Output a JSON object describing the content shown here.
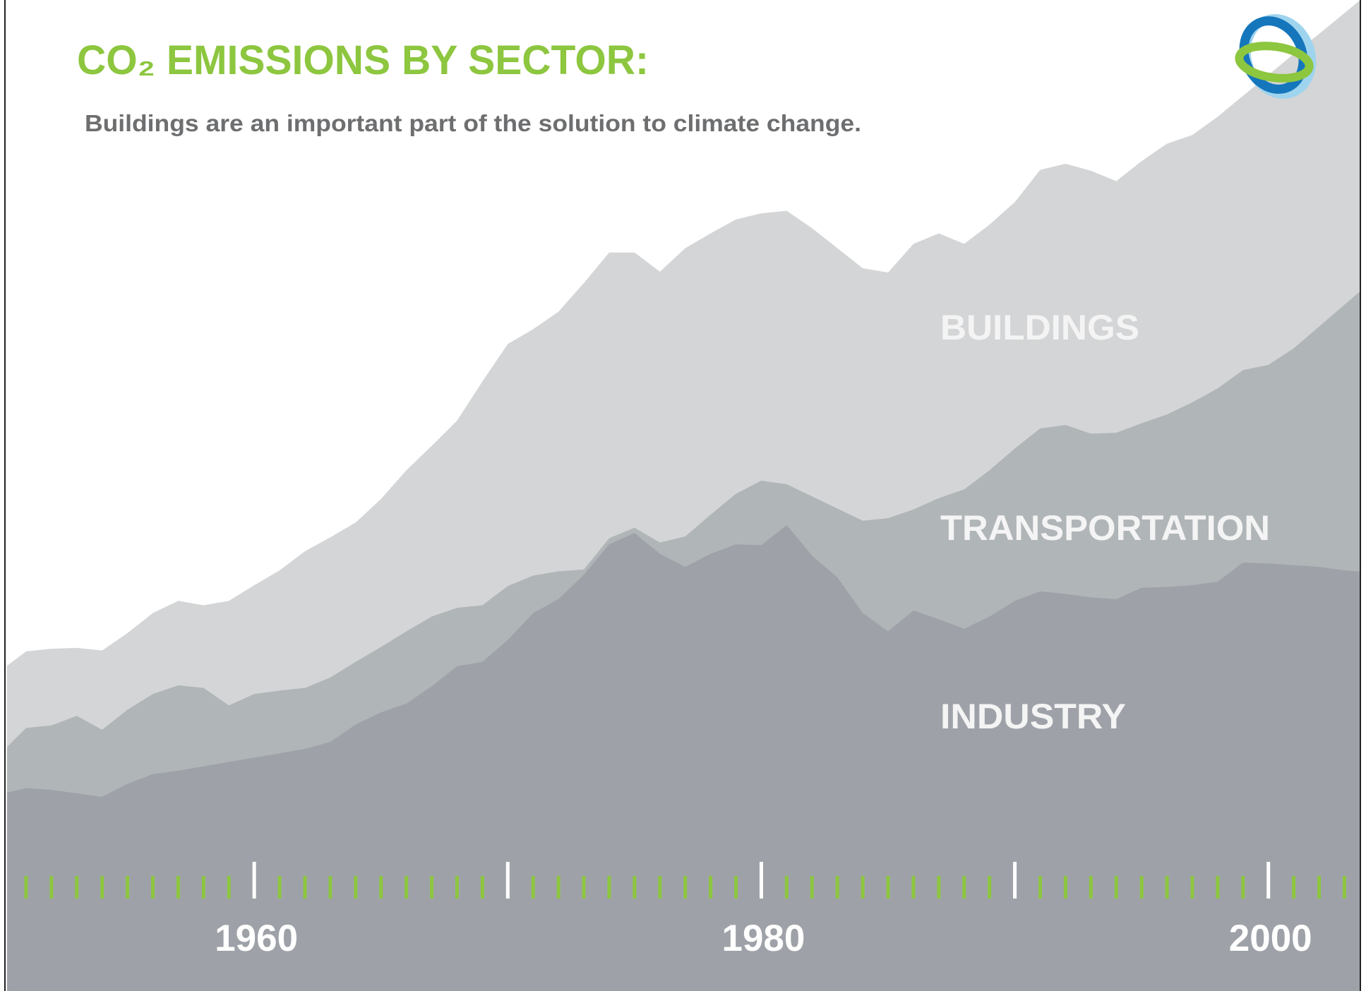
{
  "chart_data": {
    "type": "stacked_area",
    "title": "CO₂ EMISSIONS BY SECTOR:",
    "subtitle": "Buildings are an important part of the solution to climate change.",
    "x": [
      1950,
      1951,
      1952,
      1953,
      1954,
      1955,
      1956,
      1957,
      1958,
      1959,
      1960,
      1961,
      1962,
      1963,
      1964,
      1965,
      1966,
      1967,
      1968,
      1969,
      1970,
      1971,
      1972,
      1973,
      1974,
      1975,
      1976,
      1977,
      1978,
      1979,
      1980,
      1981,
      1982,
      1983,
      1984,
      1985,
      1986,
      1987,
      1988,
      1989,
      1990,
      1991,
      1992,
      1993,
      1994,
      1995,
      1996,
      1997,
      1998,
      1999,
      2000,
      2001,
      2002,
      2003,
      2004
    ],
    "series": [
      {
        "name": "INDUSTRY",
        "color": "#9ea2a8",
        "values": [
          22.6,
          23.3,
          23.1,
          22.7,
          22.3,
          23.8,
          24.9,
          25.3,
          25.8,
          26.3,
          26.8,
          27.3,
          27.8,
          28.6,
          30.6,
          32.0,
          33.0,
          35.0,
          37.3,
          37.8,
          40.3,
          43.4,
          45.0,
          47.8,
          51.3,
          52.6,
          50.2,
          48.7,
          50.2,
          51.3,
          51.2,
          53.5,
          50.0,
          47.5,
          43.4,
          41.3,
          43.7,
          42.7,
          41.6,
          43.0,
          44.8,
          45.9,
          45.6,
          45.2,
          45.0,
          46.3,
          46.4,
          46.6,
          47.0,
          49.2,
          49.1,
          48.9,
          48.7,
          48.3,
          48.1
        ]
      },
      {
        "name": "TRANSPORTATION",
        "color": "#b0b5b8",
        "values": [
          4.7,
          6.9,
          7.4,
          8.9,
          7.7,
          8.5,
          9.2,
          9.8,
          9.0,
          6.5,
          7.3,
          7.2,
          7.0,
          7.4,
          7.2,
          7.5,
          8.3,
          8.0,
          6.7,
          6.5,
          6.2,
          4.3,
          3.2,
          0.6,
          0.7,
          0.6,
          1.3,
          3.5,
          4.5,
          5.8,
          7.4,
          4.7,
          6.8,
          7.9,
          10.6,
          13.0,
          11.6,
          13.9,
          16.0,
          16.8,
          17.5,
          18.7,
          19.4,
          18.8,
          19.1,
          18.9,
          19.8,
          21.0,
          22.2,
          22.1,
          22.8,
          24.9,
          27.6,
          30.5,
          33.2
        ]
      },
      {
        "name": "BUILDINGS",
        "color": "#d4d5d6",
        "values": [
          9.5,
          8.8,
          8.8,
          7.8,
          9.1,
          8.8,
          9.3,
          9.7,
          9.5,
          12.0,
          12.5,
          13.8,
          15.7,
          16.1,
          16.0,
          17.0,
          18.5,
          19.6,
          21.5,
          25.7,
          27.8,
          28.3,
          29.8,
          32.9,
          32.8,
          31.6,
          31.1,
          33.1,
          32.3,
          31.5,
          30.7,
          31.4,
          30.8,
          29.9,
          29.0,
          28.2,
          30.5,
          30.4,
          28.2,
          28.2,
          28.3,
          29.7,
          30.0,
          30.2,
          28.9,
          30.1,
          31.1,
          30.7,
          31.2,
          31.5,
          33.3,
          33.8,
          33.6,
          33.5,
          33.4
        ]
      }
    ],
    "xlim": [
      1950.25,
      2003.6
    ],
    "ylim": [
      0,
      113.8
    ],
    "xticks": [
      1960,
      1980,
      2000
    ],
    "xmajor_ticks": [
      1960,
      1970,
      1980,
      1990,
      2000
    ],
    "xminor_step": 1,
    "minor_tick_color": "#8dc63f",
    "major_tick_color": "#ffffff"
  }
}
